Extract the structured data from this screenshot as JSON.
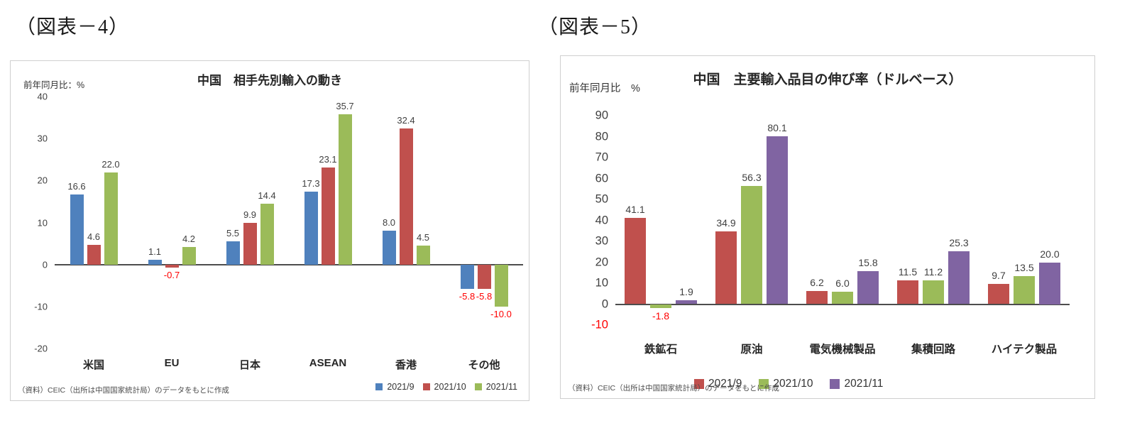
{
  "page": {
    "fig4_label": "（図表－4）",
    "fig5_label": "（図表－5）"
  },
  "chart_data": [
    {
      "type": "bar",
      "title": "中国　相手先別輸入の動き",
      "axis_unit": "前年同月比：%",
      "categories": [
        "米国",
        "EU",
        "日本",
        "ASEAN",
        "香港",
        "その他"
      ],
      "series": [
        {
          "name": "2021/9",
          "color": "#4f81bd",
          "values": [
            16.6,
            1.1,
            5.5,
            17.3,
            8.0,
            -5.8
          ]
        },
        {
          "name": "2021/10",
          "color": "#c0504d",
          "values": [
            4.6,
            -0.7,
            9.9,
            23.1,
            32.4,
            -5.8
          ]
        },
        {
          "name": "2021/11",
          "color": "#9bbb59",
          "values": [
            22.0,
            4.2,
            14.4,
            35.7,
            4.5,
            -10.0
          ]
        }
      ],
      "ylim": [
        -20,
        40
      ],
      "ytick_step": 10,
      "negative_ticks_red": false,
      "grid": false,
      "legend_position": "bottom-right",
      "negative_label_color": "#ff0000",
      "source": "（資料）CEIC（出所は中国国家統計局）のデータをもとに作成"
    },
    {
      "type": "bar",
      "title": "中国　主要輸入品目の伸び率（ドルベース）",
      "axis_unit": "前年同月比　%",
      "categories": [
        "鉄鉱石",
        "原油",
        "電気機械製品",
        "集積回路",
        "ハイテク製品"
      ],
      "series": [
        {
          "name": "2021/9",
          "color": "#c0504d",
          "values": [
            41.1,
            34.9,
            6.2,
            11.5,
            9.7
          ]
        },
        {
          "name": "2021/10",
          "color": "#9bbb59",
          "values": [
            -1.8,
            56.3,
            6.0,
            11.2,
            13.5
          ]
        },
        {
          "name": "2021/11",
          "color": "#8064a2",
          "values": [
            1.9,
            80.1,
            15.8,
            25.3,
            20.0
          ]
        }
      ],
      "ylim": [
        -10,
        90
      ],
      "ytick_step": 10,
      "negative_ticks_red": true,
      "grid": false,
      "legend_position": "bottom-center",
      "negative_label_color": "#ff0000",
      "source": "（資料）CEIC（出所は中国国家統計局）のデータをもとに作成"
    }
  ]
}
